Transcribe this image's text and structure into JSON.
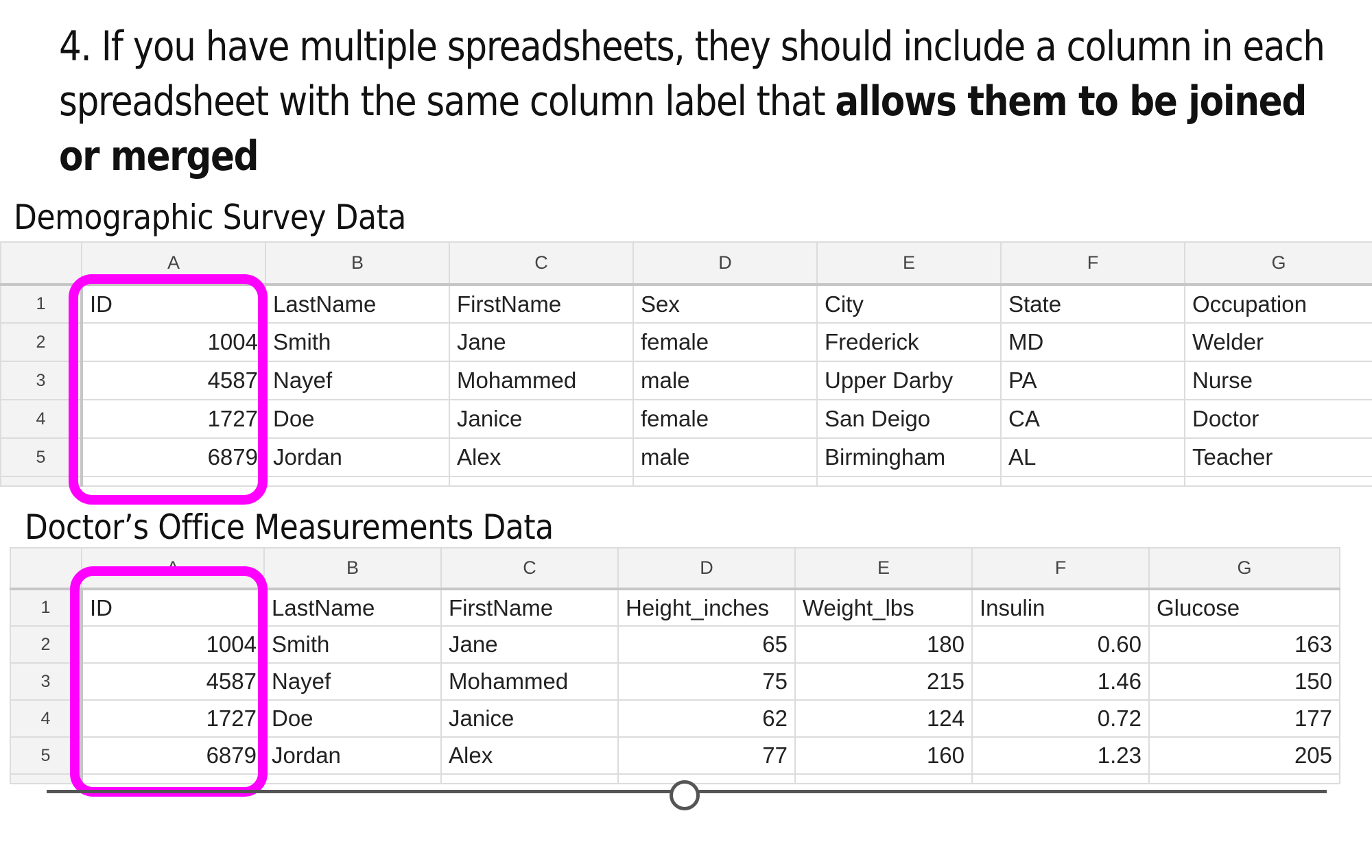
{
  "headline": {
    "number": "4.",
    "text_regular": "If you have multiple spreadsheets, they should include a column in each spreadsheet with the same column label that",
    "text_bold": "allows them to be joined or merged"
  },
  "sheet1": {
    "title": "Demographic Survey Data",
    "col_letters": [
      "A",
      "B",
      "C",
      "D",
      "E",
      "F",
      "G"
    ],
    "header": [
      "ID",
      "LastName",
      "FirstName",
      "Sex",
      "City",
      "State",
      "Occupation"
    ],
    "rows": [
      {
        "n": "2",
        "cells": [
          "1004",
          "Smith",
          "Jane",
          "female",
          "Frederick",
          "MD",
          "Welder"
        ]
      },
      {
        "n": "3",
        "cells": [
          "4587",
          "Nayef",
          "Mohammed",
          "male",
          "Upper Darby",
          "PA",
          "Nurse"
        ]
      },
      {
        "n": "4",
        "cells": [
          "1727",
          "Doe",
          "Janice",
          "female",
          "San Deigo",
          "CA",
          "Doctor"
        ]
      },
      {
        "n": "5",
        "cells": [
          "6879",
          "Jordan",
          "Alex",
          "male",
          "Birmingham",
          "AL",
          "Teacher"
        ]
      }
    ]
  },
  "sheet2": {
    "title": "Doctor’s Office Measurements Data",
    "col_letters": [
      "A",
      "B",
      "C",
      "D",
      "E",
      "F",
      "G"
    ],
    "header": [
      "ID",
      "LastName",
      "FirstName",
      "Height_inches",
      "Weight_lbs",
      "Insulin",
      "Glucose"
    ],
    "rows": [
      {
        "n": "2",
        "cells": [
          "1004",
          "Smith",
          "Jane",
          "65",
          "180",
          "0.60",
          "163"
        ]
      },
      {
        "n": "3",
        "cells": [
          "4587",
          "Nayef",
          "Mohammed",
          "75",
          "215",
          "1.46",
          "150"
        ]
      },
      {
        "n": "4",
        "cells": [
          "1727",
          "Doe",
          "Janice",
          "62",
          "124",
          "0.72",
          "177"
        ]
      },
      {
        "n": "5",
        "cells": [
          "6879",
          "Jordan",
          "Alex",
          "77",
          "160",
          "1.23",
          "205"
        ]
      }
    ]
  },
  "row_header_first": "1",
  "highlight_color": "#ff00ff"
}
